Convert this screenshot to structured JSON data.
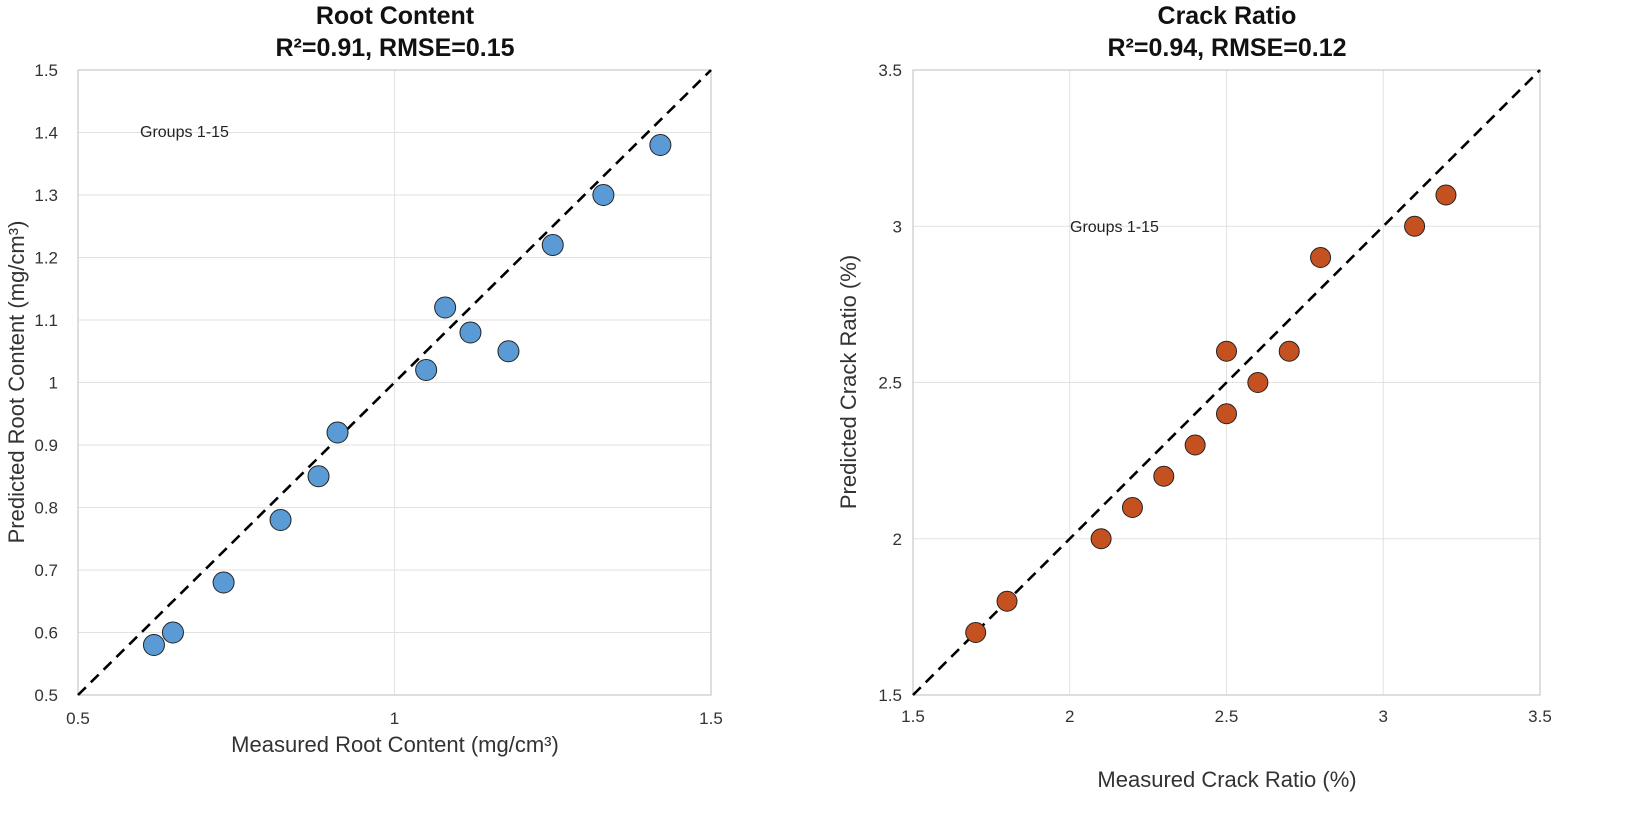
{
  "chart_data": [
    {
      "type": "scatter",
      "title": "Root Content",
      "subtitle": "R²=0.91, RMSE=0.15",
      "xlabel": "Measured Root Content (mg/cm³)",
      "ylabel": "Predicted Root Content (mg/cm³)",
      "xlim": [
        0.5,
        1.5
      ],
      "ylim": [
        0.5,
        1.5
      ],
      "xticks": [
        0.5,
        1,
        1.5
      ],
      "yticks": [
        0.5,
        0.6,
        0.7,
        0.8,
        0.9,
        1,
        1.1,
        1.2,
        1.3,
        1.4,
        1.5
      ],
      "grid": true,
      "reference_line": "y = x (dashed)",
      "annotation": "Groups 1-15",
      "marker_color": "#5b9bd5",
      "series": [
        {
          "name": "Groups 1-15",
          "x": [
            0.62,
            0.65,
            0.73,
            0.82,
            0.88,
            0.91,
            1.05,
            1.08,
            1.12,
            1.18,
            1.25,
            1.33,
            1.42
          ],
          "y": [
            0.58,
            0.6,
            0.68,
            0.78,
            0.85,
            0.92,
            1.02,
            1.12,
            1.08,
            1.05,
            1.22,
            1.3,
            1.38
          ]
        }
      ]
    },
    {
      "type": "scatter",
      "title": "Crack Ratio",
      "subtitle": "R²=0.94, RMSE=0.12",
      "xlabel": "Measured Crack Ratio (%)",
      "ylabel": "Predicted Crack Ratio (%)",
      "xlim": [
        1.5,
        3.5
      ],
      "ylim": [
        1.5,
        3.5
      ],
      "xticks": [
        1.5,
        2,
        2.5,
        3,
        3.5
      ],
      "yticks": [
        1.5,
        2,
        2.5,
        3,
        3.5
      ],
      "grid": true,
      "reference_line": "y = x (dashed)",
      "annotation": "Groups 1-15",
      "marker_color": "#c4511f",
      "series": [
        {
          "name": "Groups 1-15",
          "x": [
            1.7,
            1.8,
            2.1,
            2.2,
            2.3,
            2.4,
            2.5,
            2.5,
            2.6,
            2.7,
            2.8,
            3.1,
            3.2
          ],
          "y": [
            1.7,
            1.8,
            2.0,
            2.1,
            2.2,
            2.3,
            2.4,
            2.6,
            2.5,
            2.6,
            2.9,
            3.0,
            3.1
          ]
        }
      ]
    }
  ]
}
